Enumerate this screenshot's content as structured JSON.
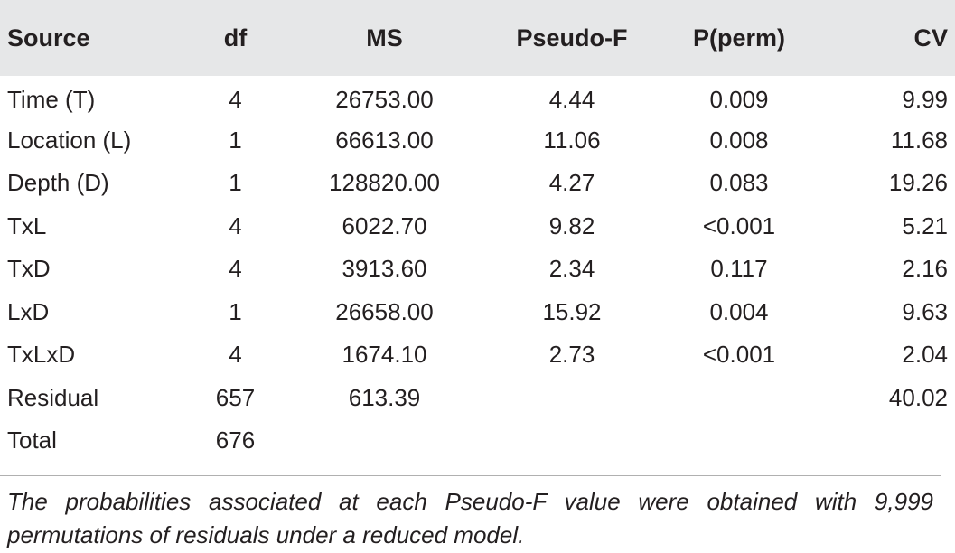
{
  "table": {
    "headers": {
      "source": "Source",
      "df": "df",
      "ms": "MS",
      "pseudo_f": "Pseudo-F",
      "p_perm": "P(perm)",
      "cv": "CV"
    },
    "rows": [
      {
        "source": "Time (T)",
        "df": "4",
        "ms": "26753.00",
        "pseudo_f": "4.44",
        "p_perm": "0.009",
        "cv": "9.99"
      },
      {
        "source": "Location (L)",
        "df": "1",
        "ms": "66613.00",
        "pseudo_f": "11.06",
        "p_perm": "0.008",
        "cv": "11.68"
      },
      {
        "source": "Depth (D)",
        "df": "1",
        "ms": "128820.00",
        "pseudo_f": "4.27",
        "p_perm": "0.083",
        "cv": "19.26"
      },
      {
        "source": "TxL",
        "df": "4",
        "ms": "6022.70",
        "pseudo_f": "9.82",
        "p_perm": "<0.001",
        "cv": "5.21"
      },
      {
        "source": "TxD",
        "df": "4",
        "ms": "3913.60",
        "pseudo_f": "2.34",
        "p_perm": "0.117",
        "cv": "2.16"
      },
      {
        "source": "LxD",
        "df": "1",
        "ms": "26658.00",
        "pseudo_f": "15.92",
        "p_perm": "0.004",
        "cv": "9.63"
      },
      {
        "source": "TxLxD",
        "df": "4",
        "ms": "1674.10",
        "pseudo_f": "2.73",
        "p_perm": "<0.001",
        "cv": "2.04"
      },
      {
        "source": "Residual",
        "df": "657",
        "ms": "613.39",
        "pseudo_f": "",
        "p_perm": "",
        "cv": "40.02"
      },
      {
        "source": "Total",
        "df": "676",
        "ms": "",
        "pseudo_f": "",
        "p_perm": "",
        "cv": ""
      }
    ],
    "footnote": "The probabilities associated at each Pseudo-F value were obtained with 9,999 permutations of residuals under a reduced model."
  }
}
